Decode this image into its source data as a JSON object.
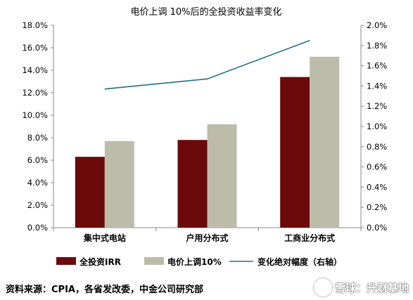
{
  "chart_data": {
    "type": "bar",
    "title": "电价上调 10%后的全投资收益率变化",
    "categories": [
      "集中式电站",
      "户用分布式",
      "工商业分布式"
    ],
    "series": [
      {
        "name": "全投资IRR",
        "type": "bar",
        "axis": "left",
        "color": "#6b0a0a",
        "values": [
          6.3,
          7.8,
          13.4
        ]
      },
      {
        "name": "电价上调10%",
        "type": "bar",
        "axis": "left",
        "color": "#bcbca8",
        "values": [
          7.7,
          9.2,
          15.2
        ]
      },
      {
        "name": "变化绝对幅度（右轴）",
        "type": "line",
        "axis": "right",
        "color": "#1f6f8b",
        "values": [
          1.37,
          1.47,
          1.85
        ]
      }
    ],
    "y_left": {
      "min": 0,
      "max": 18,
      "step": 2,
      "ticks": [
        "0.0%",
        "2.0%",
        "4.0%",
        "6.0%",
        "8.0%",
        "10.0%",
        "12.0%",
        "14.0%",
        "16.0%",
        "18.0%"
      ]
    },
    "y_right": {
      "min": 0,
      "max": 2,
      "step": 0.2,
      "ticks": [
        "0.0%",
        "0.2%",
        "0.4%",
        "0.6%",
        "0.8%",
        "1.0%",
        "1.2%",
        "1.4%",
        "1.6%",
        "1.8%",
        "2.0%"
      ]
    },
    "grid": false,
    "legend": "bottom"
  },
  "source": "资料来源：CPIA，各省发改委，中金公司研究部",
  "watermark": "雪球：升财基地"
}
